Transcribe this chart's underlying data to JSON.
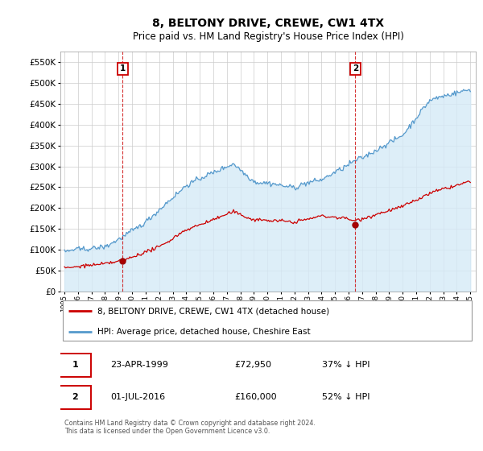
{
  "title": "8, BELTONY DRIVE, CREWE, CW1 4TX",
  "subtitle": "Price paid vs. HM Land Registry's House Price Index (HPI)",
  "title_fontsize": 10,
  "subtitle_fontsize": 8.5,
  "ylim": [
    0,
    575000
  ],
  "background_color": "#ffffff",
  "hpi_color": "#5599cc",
  "hpi_fill_color": "#cce0f0",
  "price_color": "#cc0000",
  "dashed_color": "#cc0000",
  "sale1_year": 1999.3,
  "sale1_value": 72950,
  "sale2_year": 2016.5,
  "sale2_value": 160000,
  "legend_label_price": "8, BELTONY DRIVE, CREWE, CW1 4TX (detached house)",
  "legend_label_hpi": "HPI: Average price, detached house, Cheshire East",
  "table_row1": [
    "1",
    "23-APR-1999",
    "£72,950",
    "37% ↓ HPI"
  ],
  "table_row2": [
    "2",
    "01-JUL-2016",
    "£160,000",
    "52% ↓ HPI"
  ],
  "footer": "Contains HM Land Registry data © Crown copyright and database right 2024.\nThis data is licensed under the Open Government Licence v3.0."
}
